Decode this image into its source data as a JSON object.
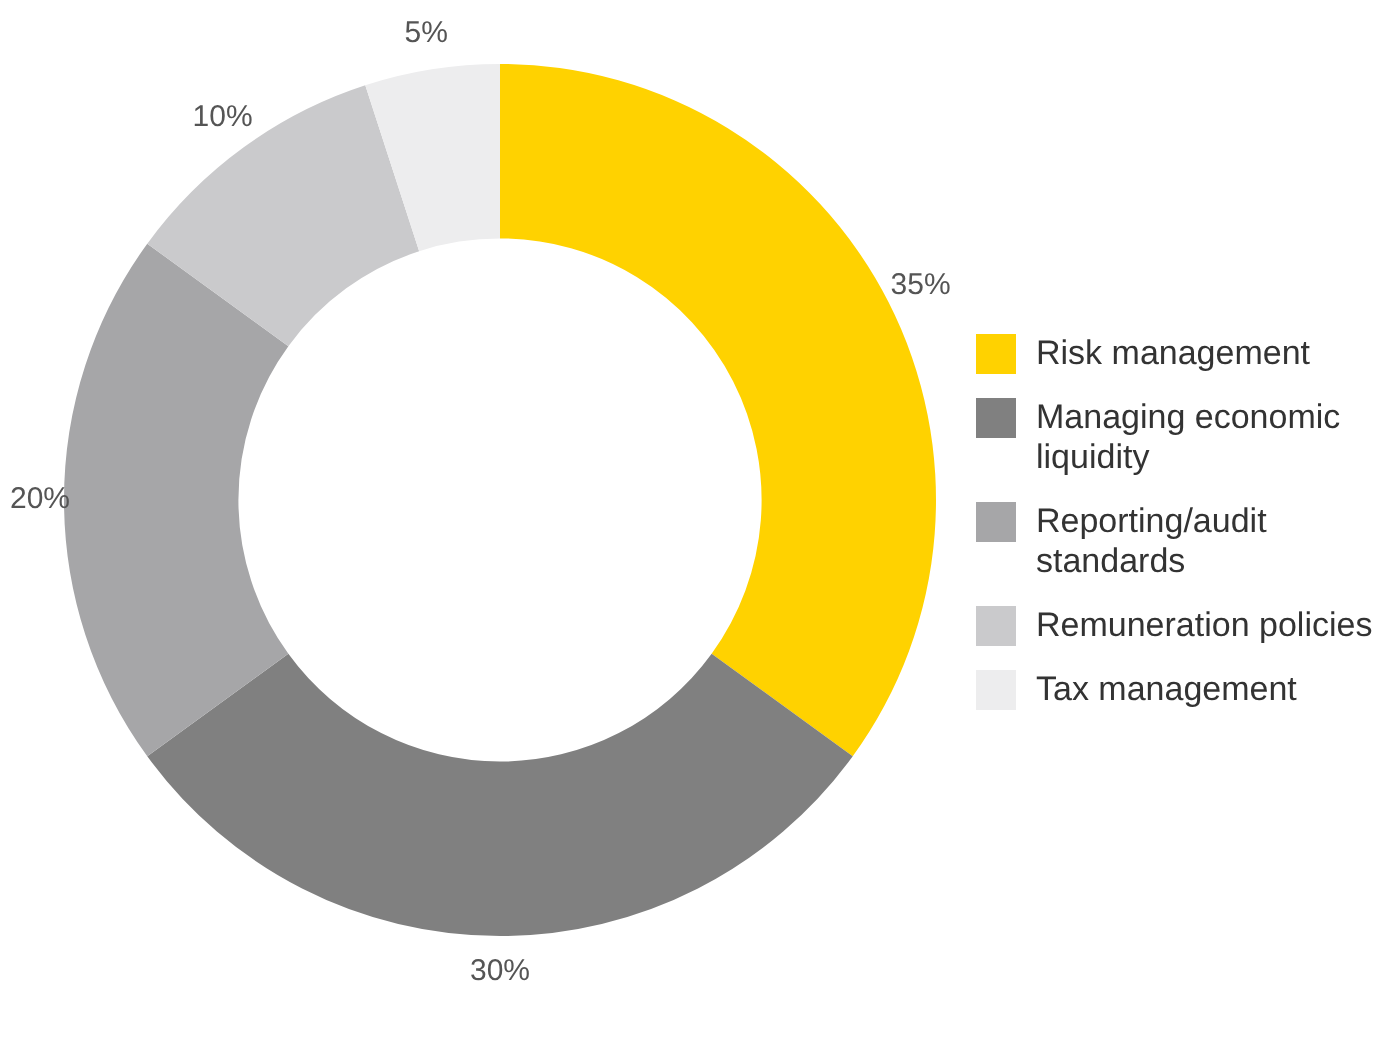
{
  "chart_data": {
    "type": "donut",
    "categories": [
      "Risk management",
      "Managing economic liquidity",
      "Reporting/audit standards",
      "Remuneration policies",
      "Tax management"
    ],
    "values": [
      35,
      30,
      20,
      10,
      5
    ],
    "value_labels": [
      "35%",
      "30%",
      "20%",
      "10%",
      "5%"
    ],
    "colors": [
      "#ffd200",
      "#808080",
      "#a6a6a8",
      "#cacacc",
      "#ededee"
    ],
    "legend": "right"
  }
}
